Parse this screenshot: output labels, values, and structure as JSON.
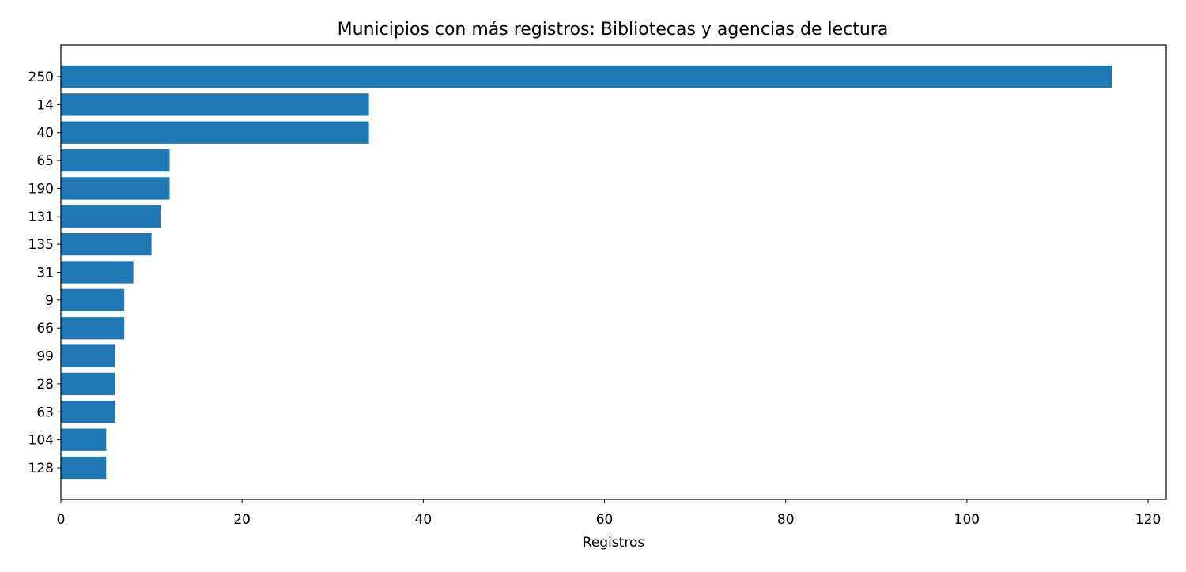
{
  "chart_data": {
    "type": "bar",
    "orientation": "horizontal",
    "title": "Municipios con más registros: Bibliotecas y agencias de lectura",
    "xlabel": "Registros",
    "ylabel": "",
    "categories": [
      "250",
      "14",
      "40",
      "65",
      "190",
      "131",
      "135",
      "31",
      "9",
      "66",
      "99",
      "28",
      "63",
      "104",
      "128"
    ],
    "values": [
      116,
      34,
      34,
      12,
      12,
      11,
      10,
      8,
      7,
      7,
      6,
      6,
      6,
      5,
      5
    ],
    "xlim": [
      0,
      122
    ],
    "xticks": [
      "0",
      "20",
      "40",
      "60",
      "80",
      "100",
      "120"
    ],
    "grid": false,
    "legend": "none",
    "bar_color": "#1f77b4"
  }
}
